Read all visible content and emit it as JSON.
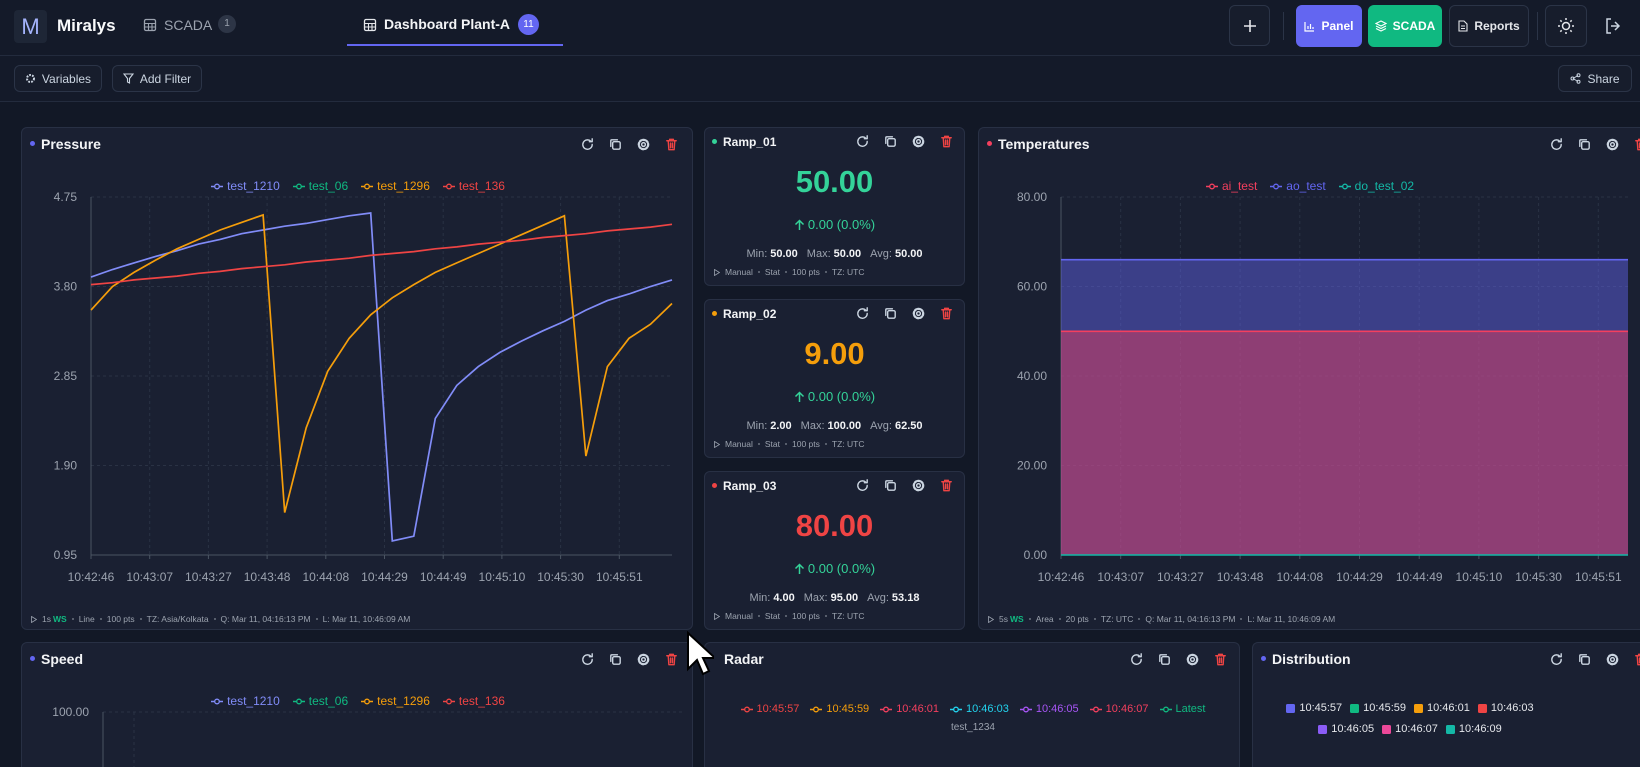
{
  "header": {
    "logo": "M",
    "brand": "Miralys",
    "tabs": [
      {
        "label": "SCADA",
        "badge": "1"
      },
      {
        "label": "Dashboard Plant-A",
        "badge": "11"
      }
    ],
    "buttons": [
      "Panel",
      "SCADA",
      "Reports"
    ]
  },
  "toolbar": {
    "left": [
      "Variables",
      "Add Filter"
    ],
    "right": "Share"
  },
  "panels": {
    "pressure": {
      "title": "Pressure",
      "chart_data": {
        "type": "line",
        "xticks": [
          "10:42:46",
          "10:43:07",
          "10:43:27",
          "10:43:48",
          "10:44:08",
          "10:44:29",
          "10:44:49",
          "10:45:10",
          "10:45:30",
          "10:45:51"
        ],
        "ylim": [
          0.95,
          4.75
        ],
        "yticks": [
          0.95,
          {
            "value": 1.9,
            "label": "1.90"
          },
          2.85,
          {
            "value": 3.8,
            "label": "3.80"
          },
          4.75
        ],
        "grid": true,
        "series": [
          {
            "name": "test_1210",
            "color": "#818cf8",
            "values": [
              3.9,
              3.98,
              4.05,
              4.12,
              4.18,
              4.25,
              4.3,
              4.36,
              4.4,
              4.44,
              4.47,
              4.51,
              4.55,
              4.58,
              1.1,
              1.15,
              2.4,
              2.75,
              2.95,
              3.1,
              3.22,
              3.33,
              3.43,
              3.55,
              3.65,
              3.72,
              3.8,
              3.87
            ]
          },
          {
            "name": "test_06",
            "color": "#10b981",
            "values": [
              null,
              null,
              null,
              null,
              null,
              null,
              null,
              null,
              null,
              null,
              null,
              null,
              null,
              null,
              null,
              null,
              null,
              null,
              null,
              null,
              null,
              null,
              null,
              null,
              null,
              null,
              null,
              null
            ]
          },
          {
            "name": "test_1296",
            "color": "#f59e0b",
            "values": [
              3.55,
              3.8,
              3.95,
              4.08,
              4.2,
              4.3,
              4.4,
              4.48,
              4.56,
              1.4,
              2.3,
              2.9,
              3.25,
              3.5,
              3.68,
              3.82,
              3.95,
              4.05,
              4.15,
              4.25,
              4.35,
              4.45,
              4.55,
              2.0,
              2.95,
              3.25,
              3.4,
              3.62
            ]
          },
          {
            "name": "test_136",
            "color": "#ef4444",
            "values": [
              3.82,
              3.84,
              3.87,
              3.89,
              3.91,
              3.94,
              3.96,
              3.99,
              4.01,
              4.03,
              4.06,
              4.08,
              4.1,
              4.13,
              4.15,
              4.17,
              4.2,
              4.22,
              4.25,
              4.27,
              4.29,
              4.32,
              4.34,
              4.36,
              4.39,
              4.41,
              4.43,
              4.46
            ]
          }
        ]
      },
      "footer": {
        "refresh": "1s",
        "mode": "WS",
        "items": [
          "Line",
          "100 pts",
          "TZ: Asia/Kolkata",
          "Q: Mar 11, 04:16:13 PM",
          "L: Mar 11, 10:46:09 AM"
        ]
      }
    },
    "ramps": [
      {
        "title": "Ramp_01",
        "color": "#34d399",
        "value": "50.00",
        "change": "0.00 (0.0%)",
        "stats": [
          {
            "label": "Min:",
            "value": "50.00"
          },
          {
            "label": "Max:",
            "value": "50.00"
          },
          {
            "label": "Avg:",
            "value": "50.00"
          }
        ],
        "footer": {
          "items": [
            "Manual",
            "Stat",
            "100 pts",
            "TZ: UTC"
          ]
        }
      },
      {
        "title": "Ramp_02",
        "color": "#f59e0b",
        "value": "9.00",
        "change": "0.00 (0.0%)",
        "stats": [
          {
            "label": "Min:",
            "value": "2.00"
          },
          {
            "label": "Max:",
            "value": "100.00"
          },
          {
            "label": "Avg:",
            "value": "62.50"
          }
        ],
        "footer": {
          "items": [
            "Manual",
            "Stat",
            "100 pts",
            "TZ: UTC"
          ]
        }
      },
      {
        "title": "Ramp_03",
        "color": "#ef4444",
        "value": "80.00",
        "change": "0.00 (0.0%)",
        "stats": [
          {
            "label": "Min:",
            "value": "4.00"
          },
          {
            "label": "Max:",
            "value": "95.00"
          },
          {
            "label": "Avg:",
            "value": "53.18"
          }
        ],
        "footer": {
          "items": [
            "Manual",
            "Stat",
            "100 pts",
            "TZ: UTC"
          ]
        }
      }
    ],
    "temperatures": {
      "title": "Temperatures",
      "chart_data": {
        "type": "area",
        "xticks": [
          "10:42:46",
          "10:43:07",
          "10:43:27",
          "10:43:48",
          "10:44:08",
          "10:44:29",
          "10:44:49",
          "10:45:10",
          "10:45:30",
          "10:45:51"
        ],
        "ylim": [
          0,
          80
        ],
        "yticks": [
          {
            "value": 0,
            "label": "0.00"
          },
          {
            "value": 20,
            "label": "20.00"
          },
          {
            "value": 40,
            "label": "40.00"
          },
          {
            "value": 60,
            "label": "60.00"
          },
          {
            "value": 80,
            "label": "80.00"
          }
        ],
        "grid": true,
        "series": [
          {
            "name": "ai_test",
            "color": "#f43f5e",
            "values": [
              50,
              50,
              50,
              50,
              50,
              50,
              50,
              50,
              50,
              50
            ]
          },
          {
            "name": "ao_test",
            "color": "#6366f1",
            "values": [
              66,
              66,
              66,
              66,
              66,
              66,
              66,
              66,
              66,
              66
            ]
          },
          {
            "name": "do_test_02",
            "color": "#14b8a6",
            "values": [
              0,
              0,
              0,
              0,
              0,
              0,
              0,
              0,
              0,
              0
            ]
          }
        ]
      },
      "footer": {
        "refresh": "5s",
        "mode": "WS",
        "items": [
          "Area",
          "20 pts",
          "TZ: UTC",
          "Q: Mar 11, 04:16:13 PM",
          "L: Mar 11, 10:46:09 AM"
        ]
      }
    },
    "speed": {
      "title": "Speed",
      "chart_data": {
        "type": "line",
        "yticks": [
          {
            "value": 100,
            "label": "100.00"
          }
        ],
        "series": [
          {
            "name": "test_1210",
            "color": "#818cf8"
          },
          {
            "name": "test_06",
            "color": "#10b981"
          },
          {
            "name": "test_1296",
            "color": "#f59e0b"
          },
          {
            "name": "test_136",
            "color": "#ef4444"
          }
        ]
      }
    },
    "radar": {
      "title": "Radar",
      "chart_data": {
        "type": "radar",
        "subtitle": "test_1234",
        "series": [
          {
            "name": "10:45:57",
            "color": "#ef4444"
          },
          {
            "name": "10:45:59",
            "color": "#f59e0b"
          },
          {
            "name": "10:46:01",
            "color": "#f43f5e"
          },
          {
            "name": "10:46:03",
            "color": "#22d3ee"
          },
          {
            "name": "10:46:05",
            "color": "#a855f7"
          },
          {
            "name": "10:46:07",
            "color": "#f43f5e"
          },
          {
            "name": "Latest",
            "color": "#10b981"
          }
        ]
      }
    },
    "distribution": {
      "title": "Distribution",
      "chart_data": {
        "type": "pie",
        "series": [
          {
            "name": "10:45:57",
            "color": "#6366f1"
          },
          {
            "name": "10:45:59",
            "color": "#10b981"
          },
          {
            "name": "10:46:01",
            "color": "#f59e0b"
          },
          {
            "name": "10:46:03",
            "color": "#ef4444"
          },
          {
            "name": "10:46:05",
            "color": "#8b5cf6"
          },
          {
            "name": "10:46:07",
            "color": "#ec4899"
          },
          {
            "name": "10:46:09",
            "color": "#14b8a6"
          }
        ]
      }
    }
  }
}
